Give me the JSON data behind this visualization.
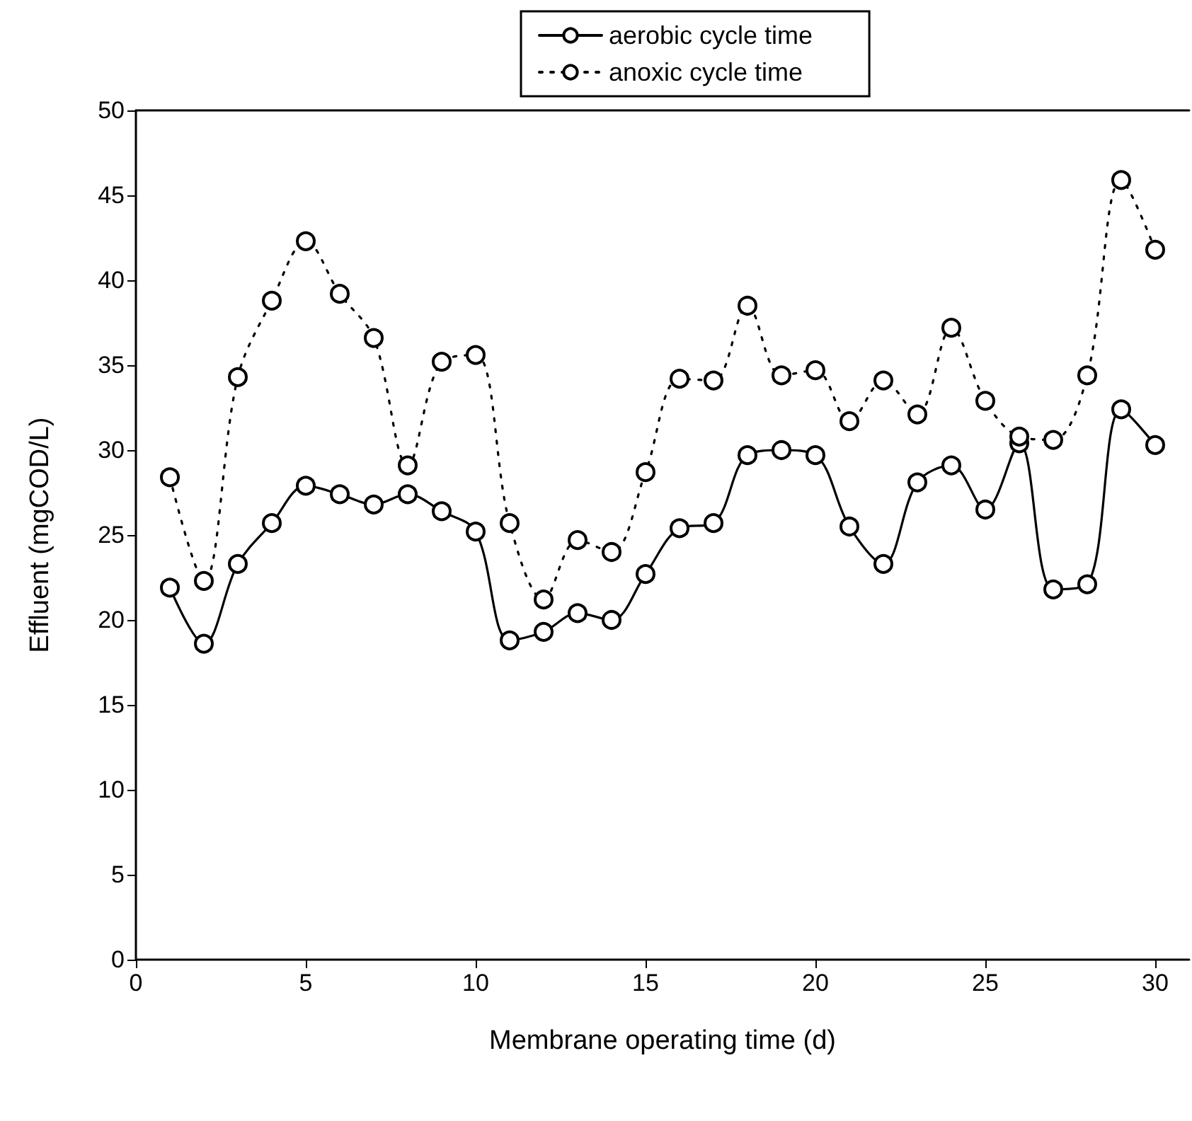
{
  "chart_data": {
    "type": "line",
    "xlabel": "Membrane operating time (d)",
    "ylabel": "Effluent (mgCOD/L)",
    "x": [
      1,
      2,
      3,
      4,
      5,
      6,
      7,
      8,
      9,
      10,
      11,
      12,
      13,
      14,
      15,
      16,
      17,
      18,
      19,
      20,
      21,
      22,
      23,
      24,
      25,
      26,
      27,
      28,
      29,
      30
    ],
    "series": [
      {
        "name": "aerobic cycle time",
        "color": "#000000",
        "line_style": "solid",
        "values": [
          21.9,
          18.6,
          23.3,
          25.7,
          27.9,
          27.4,
          26.8,
          27.4,
          26.4,
          25.2,
          18.8,
          19.3,
          20.4,
          20.0,
          22.7,
          25.4,
          25.7,
          29.7,
          30.0,
          29.7,
          25.5,
          23.3,
          28.1,
          29.1,
          26.5,
          30.4,
          21.8,
          22.1,
          32.4,
          30.3
        ]
      },
      {
        "name": "anoxic cycle time",
        "color": "#000000",
        "line_style": "dotted",
        "values": [
          28.4,
          22.3,
          34.3,
          38.8,
          42.3,
          39.2,
          36.6,
          29.1,
          35.2,
          35.6,
          25.7,
          21.2,
          24.7,
          24.0,
          28.7,
          34.2,
          34.1,
          38.5,
          34.4,
          34.7,
          31.7,
          34.1,
          32.1,
          37.2,
          32.9,
          30.8,
          30.6,
          34.4,
          45.9,
          41.8
        ]
      }
    ],
    "xlim": [
      0,
      31
    ],
    "xticks": [
      0,
      5,
      10,
      15,
      20,
      25,
      30
    ],
    "ylim": [
      0,
      50
    ],
    "yticks": [
      0,
      5,
      10,
      15,
      20,
      25,
      30,
      35,
      40,
      45,
      50
    ],
    "grid": false,
    "legend": "top",
    "marker": "circle"
  }
}
